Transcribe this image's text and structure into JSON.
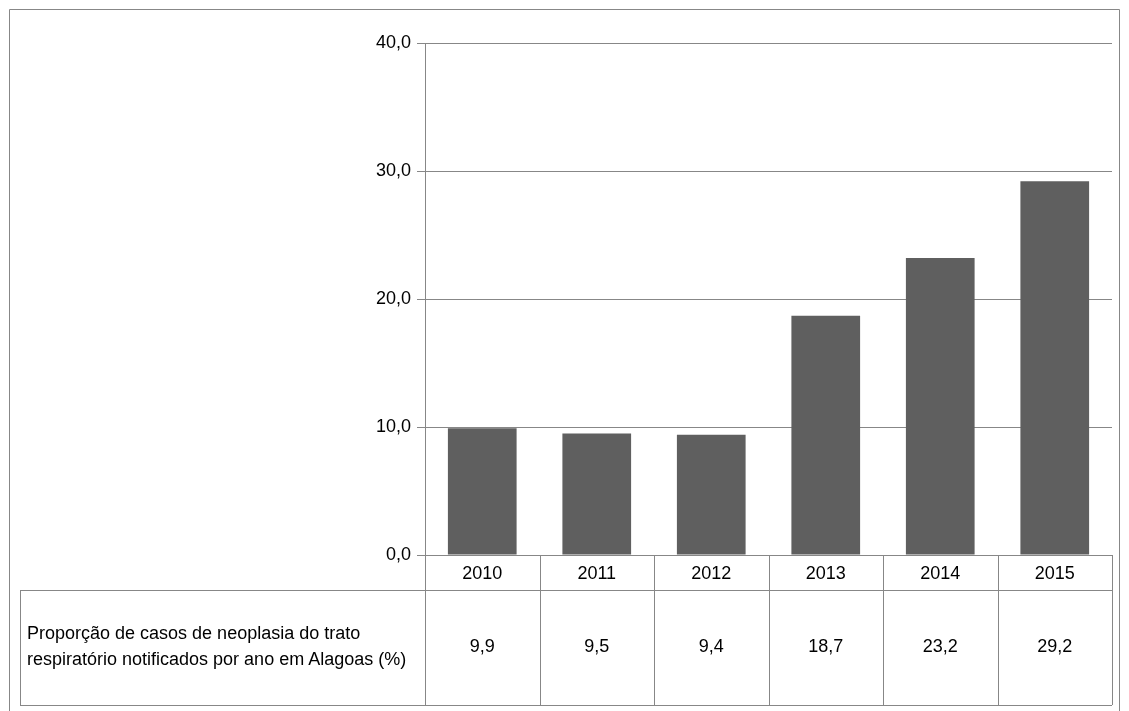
{
  "chart_data": {
    "type": "bar",
    "categories": [
      "2010",
      "2011",
      "2012",
      "2013",
      "2014",
      "2015"
    ],
    "series": [
      {
        "name": "Proporção de casos de neoplasia do trato respiratório notificados por ano em Alagoas (%)",
        "color": "#5f5f5f",
        "values": [
          9.9,
          9.5,
          9.4,
          18.7,
          23.2,
          29.2
        ],
        "value_labels": [
          "9,9",
          "9,5",
          "9,4",
          "18,7",
          "23,2",
          "29,2"
        ]
      }
    ],
    "ylim": [
      0,
      40
    ],
    "yticks": [
      {
        "value": 0,
        "label": "0,0"
      },
      {
        "value": 10,
        "label": "10,0"
      },
      {
        "value": 20,
        "label": "20,0"
      },
      {
        "value": 30,
        "label": "30,0"
      },
      {
        "value": 40,
        "label": "40,0"
      }
    ],
    "grid": "y",
    "legend": false
  }
}
